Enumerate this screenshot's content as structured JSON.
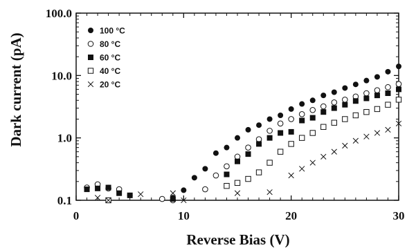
{
  "chart_data": {
    "type": "scatter",
    "title": "",
    "xlabel": "Reverse Bias (V)",
    "ylabel": "Dark current (pA)",
    "xlim": [
      0,
      30
    ],
    "ylim": [
      0.1,
      100
    ],
    "yscale": "log",
    "grid": false,
    "legend_position": "top-left",
    "x_ticks": [
      0,
      10,
      20,
      30
    ],
    "x_tick_labels": [
      "0",
      "10",
      "20",
      "30"
    ],
    "y_ticks": [
      0.1,
      1,
      10,
      100
    ],
    "y_tick_labels": [
      "0.1",
      "1.0",
      "10.0",
      "100.0"
    ],
    "series": [
      {
        "name": "100 °C",
        "marker": "filled-circle",
        "points": [
          [
            1,
            0.16
          ],
          [
            2,
            0.17
          ],
          [
            3,
            0.16
          ],
          [
            4,
            0.14
          ],
          [
            5,
            0.12
          ],
          [
            9,
            0.11
          ],
          [
            10,
            0.145
          ],
          [
            11,
            0.23
          ],
          [
            12,
            0.32
          ],
          [
            13,
            0.57
          ],
          [
            14,
            0.7
          ],
          [
            15,
            1.0
          ],
          [
            16,
            1.35
          ],
          [
            17,
            1.6
          ],
          [
            18,
            2.0
          ],
          [
            19,
            2.3
          ],
          [
            20,
            2.9
          ],
          [
            21,
            3.5
          ],
          [
            22,
            4.0
          ],
          [
            23,
            4.8
          ],
          [
            24,
            5.4
          ],
          [
            25,
            6.3
          ],
          [
            26,
            7.2
          ],
          [
            27,
            8.3
          ],
          [
            28,
            9.5
          ],
          [
            29,
            11.5
          ],
          [
            30,
            14.0
          ]
        ]
      },
      {
        "name": "80 °C",
        "marker": "open-circle",
        "points": [
          [
            1,
            0.16
          ],
          [
            2,
            0.18
          ],
          [
            3,
            0.155
          ],
          [
            4,
            0.15
          ],
          [
            8,
            0.105
          ],
          [
            9,
            0.1
          ],
          [
            12,
            0.15
          ],
          [
            13,
            0.25
          ],
          [
            14,
            0.35
          ],
          [
            15,
            0.5
          ],
          [
            16,
            0.7
          ],
          [
            17,
            0.95
          ],
          [
            18,
            1.3
          ],
          [
            19,
            1.7
          ],
          [
            20,
            2.0
          ],
          [
            21,
            2.4
          ],
          [
            22,
            2.8
          ],
          [
            23,
            3.2
          ],
          [
            24,
            3.7
          ],
          [
            25,
            4.1
          ],
          [
            26,
            4.6
          ],
          [
            27,
            5.2
          ],
          [
            28,
            5.8
          ],
          [
            29,
            6.5
          ],
          [
            30,
            7.3
          ]
        ]
      },
      {
        "name": "60 °C",
        "marker": "filled-square",
        "points": [
          [
            1,
            0.15
          ],
          [
            2,
            0.155
          ],
          [
            3,
            0.16
          ],
          [
            4,
            0.13
          ],
          [
            5,
            0.12
          ],
          [
            9,
            0.105
          ],
          [
            14,
            0.26
          ],
          [
            15,
            0.42
          ],
          [
            16,
            0.55
          ],
          [
            17,
            0.8
          ],
          [
            18,
            1.0
          ],
          [
            19,
            1.2
          ],
          [
            20,
            1.25
          ],
          [
            21,
            1.9
          ],
          [
            22,
            2.1
          ],
          [
            23,
            2.6
          ],
          [
            24,
            3.0
          ],
          [
            25,
            3.4
          ],
          [
            26,
            3.9
          ],
          [
            27,
            4.3
          ],
          [
            28,
            4.8
          ],
          [
            29,
            5.2
          ],
          [
            30,
            6.0
          ]
        ]
      },
      {
        "name": "40 °C",
        "marker": "open-square",
        "points": [
          [
            3,
            0.1
          ],
          [
            14,
            0.17
          ],
          [
            15,
            0.19
          ],
          [
            16,
            0.22
          ],
          [
            17,
            0.28
          ],
          [
            18,
            0.4
          ],
          [
            19,
            0.6
          ],
          [
            20,
            0.8
          ],
          [
            21,
            1.0
          ],
          [
            22,
            1.2
          ],
          [
            23,
            1.5
          ],
          [
            24,
            1.75
          ],
          [
            25,
            2.0
          ],
          [
            26,
            2.3
          ],
          [
            27,
            2.6
          ],
          [
            28,
            2.9
          ],
          [
            29,
            3.4
          ],
          [
            30,
            4.1
          ]
        ]
      },
      {
        "name": "20 °C",
        "marker": "cross",
        "points": [
          [
            2,
            0.11
          ],
          [
            3,
            0.1
          ],
          [
            6,
            0.125
          ],
          [
            9,
            0.13
          ],
          [
            10,
            0.1
          ],
          [
            15,
            0.13
          ],
          [
            18,
            0.135
          ],
          [
            20,
            0.25
          ],
          [
            21,
            0.32
          ],
          [
            22,
            0.4
          ],
          [
            23,
            0.5
          ],
          [
            24,
            0.6
          ],
          [
            25,
            0.75
          ],
          [
            26,
            0.9
          ],
          [
            27,
            1.05
          ],
          [
            28,
            1.2
          ],
          [
            29,
            1.35
          ],
          [
            30,
            1.7
          ]
        ]
      }
    ]
  }
}
